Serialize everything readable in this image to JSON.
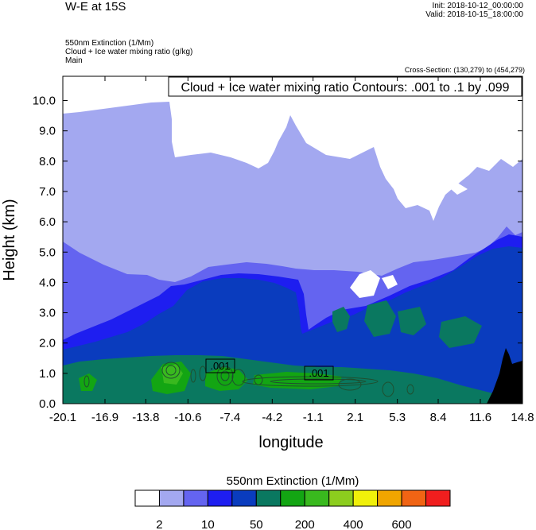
{
  "header": {
    "title": "W-E at 15S",
    "init": "Init: 2018-10-12_00:00:00",
    "valid": "Valid: 2018-10-15_18:00:00",
    "field1": "550nm Extinction   (1/Mm)",
    "field2": "Cloud + Ice water mixing ratio   (g/kg)",
    "field3": "Main",
    "cross_section": "Cross-Section: (130,279) to (454,279)"
  },
  "chart_data": {
    "type": "contour",
    "title": "W-E at 15S",
    "xlabel": "longitude",
    "ylabel": "Height (km)",
    "xlim": [
      -20.1,
      14.8
    ],
    "ylim": [
      0.0,
      10.8
    ],
    "x_ticks": [
      "-20.1",
      "-16.9",
      "-13.8",
      "-10.6",
      "-7.4",
      "-4.2",
      "-1.1",
      "2.1",
      "5.3",
      "8.4",
      "11.6",
      "14.8"
    ],
    "y_ticks": [
      "0.0",
      "1.0",
      "2.0",
      "3.0",
      "4.0",
      "5.0",
      "6.0",
      "7.0",
      "8.0",
      "9.0",
      "10.0"
    ],
    "contour_label": "Cloud + Ice water mixing ratio Contours: .001 to .1 by .099",
    "contour_line_labels": [
      ".001",
      ".001"
    ],
    "colorbar": {
      "title": "550nm Extinction  (1/Mm)",
      "colors": [
        "#ffffff",
        "#a3a8f0",
        "#6464f0",
        "#1e1ef0",
        "#0a3cbe",
        "#0a7860",
        "#13a513",
        "#39b91e",
        "#8ccd1e",
        "#f0f00a",
        "#f0a500",
        "#f06414",
        "#f01e1e"
      ],
      "labels": [
        "2",
        "10",
        "50",
        "200",
        "400",
        "600"
      ]
    }
  }
}
